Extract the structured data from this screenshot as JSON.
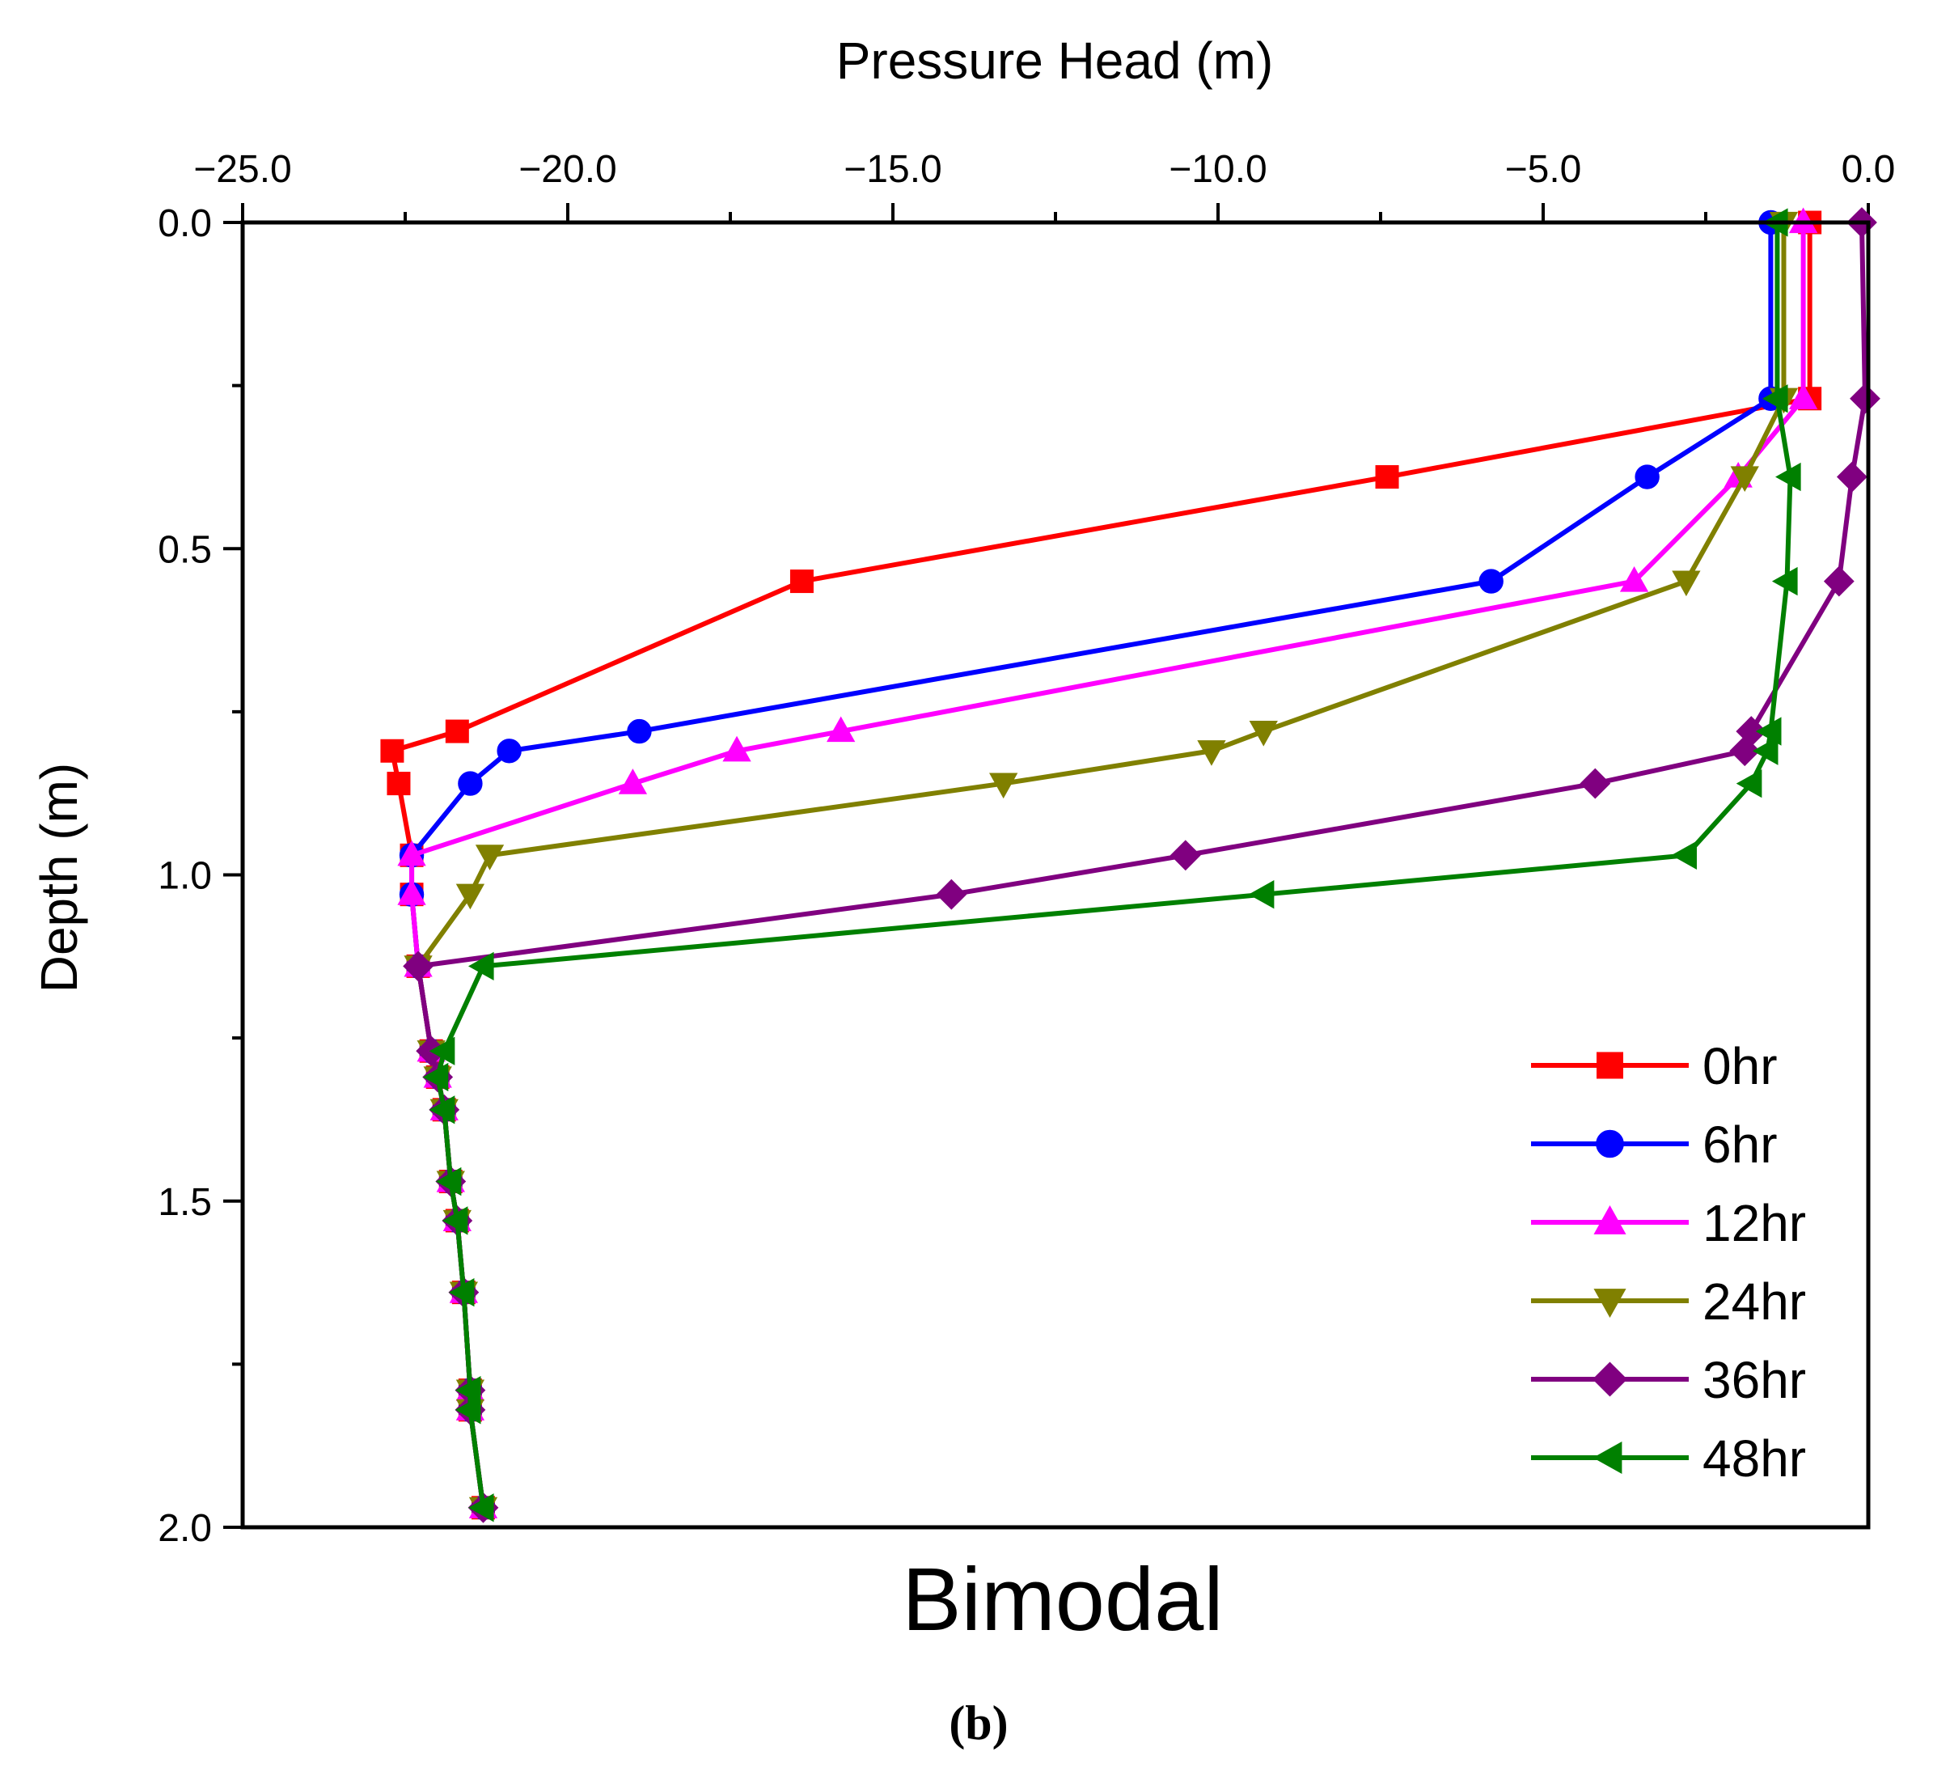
{
  "chart_data": {
    "type": "line",
    "title": "Bimodal",
    "panel_label": "(b)",
    "xlabel": "Pressure Head (m)",
    "ylabel": "Depth (m)",
    "xlim": [
      -25,
      0
    ],
    "ylim": [
      0,
      2
    ],
    "y_inverted": true,
    "x_axis_position": "top",
    "x_ticks": [
      -25,
      -20,
      -15,
      -10,
      -5,
      0
    ],
    "x_tick_labels": [
      "−25.0",
      "−20.0",
      "−15.0",
      "−10.0",
      "−5.0",
      "0.0"
    ],
    "y_ticks": [
      0,
      0.5,
      1,
      1.5,
      2
    ],
    "y_tick_labels": [
      "0.0",
      "0.5",
      "1.0",
      "1.5",
      "2.0"
    ],
    "grid": false,
    "legend_position": "bottom-right",
    "series": [
      {
        "name": "0hr",
        "color": "#ff0000",
        "marker": "square",
        "x": [
          -0.9,
          -0.9,
          -7.4,
          -16.4,
          -21.7,
          -22.7,
          -22.6,
          -22.4,
          -22.4,
          -22.3,
          -22.1,
          -22.0,
          -21.9,
          -21.8,
          -21.7,
          -21.6,
          -21.5,
          -21.5,
          -21.3
        ],
        "y": [
          0.0,
          0.27,
          0.39,
          0.55,
          0.78,
          0.81,
          0.86,
          0.97,
          1.03,
          1.14,
          1.27,
          1.31,
          1.36,
          1.47,
          1.53,
          1.64,
          1.79,
          1.82,
          1.97
        ]
      },
      {
        "name": "6hr",
        "color": "#0000ff",
        "marker": "circle",
        "x": [
          -1.5,
          -1.5,
          -3.4,
          -5.8,
          -18.9,
          -20.9,
          -21.5,
          -22.4,
          -22.4,
          -22.3,
          -22.1,
          -22.0,
          -21.9,
          -21.8,
          -21.7,
          -21.6,
          -21.5,
          -21.5,
          -21.3
        ],
        "y": [
          0.0,
          0.27,
          0.39,
          0.55,
          0.78,
          0.81,
          0.86,
          0.97,
          1.03,
          1.14,
          1.27,
          1.31,
          1.36,
          1.47,
          1.53,
          1.64,
          1.79,
          1.82,
          1.97
        ]
      },
      {
        "name": "12hr",
        "color": "#ff00ff",
        "marker": "triangle-up",
        "x": [
          -1.0,
          -1.0,
          -2.0,
          -3.6,
          -15.8,
          -17.4,
          -19.0,
          -22.4,
          -22.4,
          -22.3,
          -22.1,
          -22.0,
          -21.9,
          -21.8,
          -21.7,
          -21.6,
          -21.5,
          -21.5,
          -21.3
        ],
        "y": [
          0.0,
          0.27,
          0.39,
          0.55,
          0.78,
          0.81,
          0.86,
          0.97,
          1.03,
          1.14,
          1.27,
          1.31,
          1.36,
          1.47,
          1.53,
          1.64,
          1.79,
          1.82,
          1.97
        ]
      },
      {
        "name": "24hr",
        "color": "#808000",
        "marker": "triangle-down",
        "x": [
          -1.3,
          -1.3,
          -1.9,
          -2.8,
          -9.3,
          -10.1,
          -13.3,
          -21.2,
          -21.5,
          -22.3,
          -22.1,
          -22.0,
          -21.9,
          -21.8,
          -21.7,
          -21.6,
          -21.5,
          -21.5,
          -21.3
        ],
        "y": [
          0.0,
          0.27,
          0.39,
          0.55,
          0.78,
          0.81,
          0.86,
          0.97,
          1.03,
          1.14,
          1.27,
          1.31,
          1.36,
          1.47,
          1.53,
          1.64,
          1.79,
          1.82,
          1.97
        ]
      },
      {
        "name": "36hr",
        "color": "#800080",
        "marker": "diamond",
        "x": [
          -0.1,
          -0.05,
          -0.25,
          -0.45,
          -1.8,
          -1.9,
          -4.2,
          -10.5,
          -14.1,
          -22.3,
          -22.1,
          -22.0,
          -21.9,
          -21.8,
          -21.7,
          -21.6,
          -21.5,
          -21.5,
          -21.3
        ],
        "y": [
          0.0,
          0.27,
          0.39,
          0.55,
          0.78,
          0.81,
          0.86,
          0.97,
          1.03,
          1.14,
          1.27,
          1.31,
          1.36,
          1.47,
          1.53,
          1.64,
          1.79,
          1.82,
          1.97
        ]
      },
      {
        "name": "48hr",
        "color": "#008000",
        "marker": "triangle-left",
        "x": [
          -1.4,
          -1.4,
          -1.2,
          -1.25,
          -1.5,
          -1.55,
          -1.8,
          -2.8,
          -9.3,
          -21.3,
          -21.9,
          -22.0,
          -21.9,
          -21.8,
          -21.7,
          -21.6,
          -21.5,
          -21.5,
          -21.3
        ],
        "y": [
          0.0,
          0.27,
          0.39,
          0.55,
          0.78,
          0.81,
          0.86,
          0.97,
          1.03,
          1.14,
          1.27,
          1.31,
          1.36,
          1.47,
          1.53,
          1.64,
          1.79,
          1.82,
          1.97
        ]
      }
    ]
  }
}
